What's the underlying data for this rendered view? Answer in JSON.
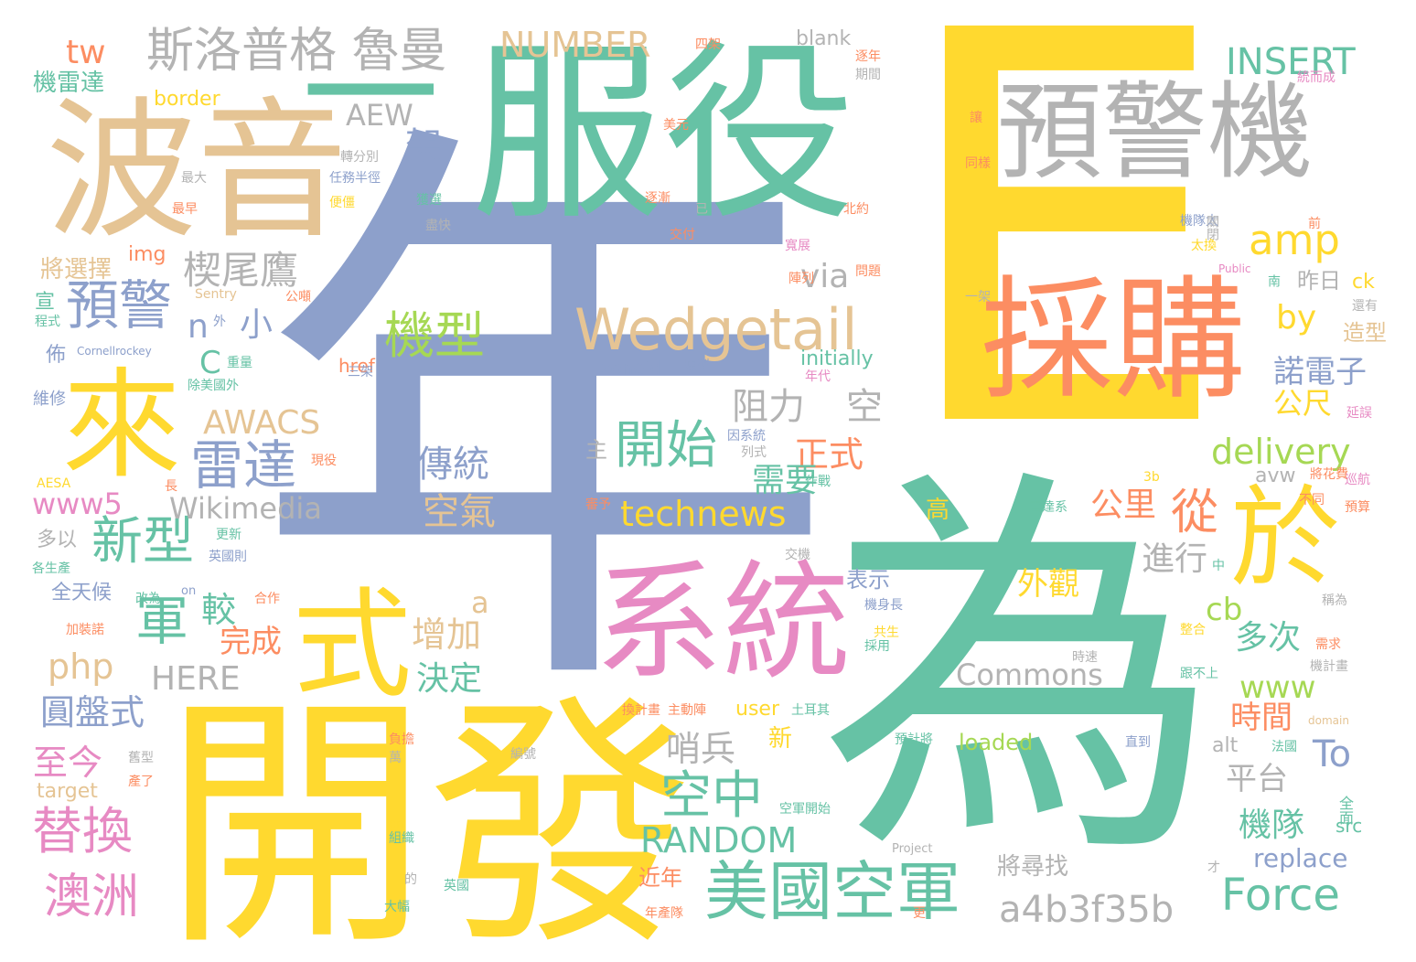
{
  "palette": {
    "teal": "#66c2a5",
    "orange": "#fc8d62",
    "blue": "#8da0cb",
    "pink": "#e78ac3",
    "green": "#a6d854",
    "yellow": "#ffd92f",
    "tan": "#e5c494",
    "gray": "#b3b3b3"
  },
  "words": [
    {
      "text": "E",
      "color": "yellow",
      "rotate": false,
      "emphasis": "largest"
    },
    {
      "text": "年",
      "color": "blue",
      "rotate": false,
      "emphasis": "largest"
    },
    {
      "text": "為",
      "color": "teal",
      "rotate": false,
      "emphasis": "largest"
    },
    {
      "text": "開發",
      "color": "yellow"
    },
    {
      "text": "服役",
      "color": "teal"
    },
    {
      "text": "波音",
      "color": "tan"
    },
    {
      "text": "採購",
      "color": "orange"
    },
    {
      "text": "預警機",
      "color": "gray"
    },
    {
      "text": "系統",
      "color": "pink"
    },
    {
      "text": "來",
      "color": "yellow"
    },
    {
      "text": "式",
      "color": "yellow"
    },
    {
      "text": "於",
      "color": "yellow"
    },
    {
      "text": "一",
      "color": "teal"
    },
    {
      "text": "美國空軍",
      "color": "teal"
    },
    {
      "text": "斯洛普格 魯曼",
      "color": "gray"
    },
    {
      "text": "Wedgetail",
      "color": "tan"
    },
    {
      "text": "預警",
      "color": "blue"
    },
    {
      "text": "雷達",
      "color": "blue"
    },
    {
      "text": "新型",
      "color": "teal"
    },
    {
      "text": "替換",
      "color": "pink"
    },
    {
      "text": "澳洲",
      "color": "pink"
    },
    {
      "text": "機型",
      "color": "green"
    },
    {
      "text": "開始",
      "color": "teal"
    },
    {
      "text": "空中",
      "color": "teal"
    },
    {
      "text": "Force",
      "color": "teal"
    },
    {
      "text": "a4b3f35b",
      "color": "gray"
    },
    {
      "text": "amp",
      "color": "yellow"
    },
    {
      "text": "INSERT",
      "color": "teal"
    },
    {
      "text": "NUMBER",
      "color": "tan"
    },
    {
      "text": "technews",
      "color": "yellow"
    },
    {
      "text": "RANDOM",
      "color": "teal"
    },
    {
      "text": "Commons",
      "color": "gray"
    },
    {
      "text": "delivery",
      "color": "green"
    },
    {
      "text": "Wikimedia",
      "color": "gray"
    },
    {
      "text": "AWACS",
      "color": "tan"
    },
    {
      "text": "www5",
      "color": "pink"
    },
    {
      "text": "www",
      "color": "green"
    },
    {
      "text": "php",
      "color": "tan"
    },
    {
      "text": "HERE",
      "color": "gray"
    },
    {
      "text": "To",
      "color": "blue"
    },
    {
      "text": "軍",
      "color": "teal"
    },
    {
      "text": "架",
      "color": "blue"
    },
    {
      "text": "從",
      "color": "orange"
    },
    {
      "text": "楔尾鷹",
      "color": "gray"
    },
    {
      "text": "傳統",
      "color": "blue"
    },
    {
      "text": "空氣",
      "color": "tan"
    },
    {
      "text": "阻力",
      "color": "gray"
    },
    {
      "text": "空",
      "color": "gray"
    },
    {
      "text": "正式",
      "color": "orange"
    },
    {
      "text": "需要",
      "color": "teal"
    },
    {
      "text": "增加",
      "color": "tan"
    },
    {
      "text": "決定",
      "color": "teal"
    },
    {
      "text": "外觀",
      "color": "yellow"
    },
    {
      "text": "圓盤式",
      "color": "blue"
    },
    {
      "text": "至今",
      "color": "pink"
    },
    {
      "text": "完成",
      "color": "orange"
    },
    {
      "text": "較",
      "color": "teal"
    },
    {
      "text": "哨兵",
      "color": "gray"
    },
    {
      "text": "機隊",
      "color": "teal"
    },
    {
      "text": "多次",
      "color": "teal"
    },
    {
      "text": "時間",
      "color": "orange"
    },
    {
      "text": "平台",
      "color": "gray"
    },
    {
      "text": "進行",
      "color": "gray"
    },
    {
      "text": "公里",
      "color": "orange"
    },
    {
      "text": "諾電子",
      "color": "blue"
    },
    {
      "text": "公尺",
      "color": "yellow"
    },
    {
      "text": "cb",
      "color": "green"
    },
    {
      "text": "by",
      "color": "yellow"
    },
    {
      "text": "via",
      "color": "gray"
    },
    {
      "text": "AEW",
      "color": "gray"
    },
    {
      "text": "tw",
      "color": "orange"
    },
    {
      "text": "n",
      "color": "blue"
    },
    {
      "text": "小",
      "color": "blue"
    },
    {
      "text": "a",
      "color": "tan"
    },
    {
      "text": "C",
      "color": "teal"
    },
    {
      "text": "replace",
      "color": "blue"
    },
    {
      "text": "loaded",
      "color": "green"
    },
    {
      "text": "zoneid",
      "color": "blue"
    },
    {
      "text": "initially",
      "color": "teal"
    },
    {
      "text": "blank",
      "color": "gray"
    },
    {
      "text": "border",
      "color": "yellow"
    },
    {
      "text": "img",
      "color": "orange"
    },
    {
      "text": "href",
      "color": "orange"
    },
    {
      "text": "user",
      "color": "yellow"
    },
    {
      "text": "alt",
      "color": "gray"
    },
    {
      "text": "avw",
      "color": "gray"
    },
    {
      "text": "ck",
      "color": "yellow"
    },
    {
      "text": "src",
      "color": "teal"
    },
    {
      "text": "target",
      "color": "tan"
    },
    {
      "text": "將尋找",
      "color": "gray"
    },
    {
      "text": "近年",
      "color": "orange"
    },
    {
      "text": "表示",
      "color": "blue"
    },
    {
      "text": "新",
      "color": "yellow"
    },
    {
      "text": "主",
      "color": "gray"
    },
    {
      "text": "高",
      "color": "yellow"
    },
    {
      "text": "昨日",
      "color": "gray"
    },
    {
      "text": "造型",
      "color": "tan"
    },
    {
      "text": "將選擇",
      "color": "tan"
    },
    {
      "text": "機雷達",
      "color": "teal"
    },
    {
      "text": "宣",
      "color": "teal"
    },
    {
      "text": "佈",
      "color": "blue"
    },
    {
      "text": "多以",
      "color": "gray"
    },
    {
      "text": "全天候",
      "color": "blue"
    },
    {
      "text": "維修",
      "color": "blue"
    },
    {
      "text": "逐年",
      "color": "orange"
    },
    {
      "text": "期間",
      "color": "gray"
    },
    {
      "text": "美元",
      "color": "orange"
    },
    {
      "text": "已",
      "color": "gray"
    },
    {
      "text": "北約",
      "color": "orange"
    },
    {
      "text": "交付",
      "color": "orange"
    },
    {
      "text": "逐漸",
      "color": "orange"
    },
    {
      "text": "盡快",
      "color": "gray"
    },
    {
      "text": "任務半徑",
      "color": "blue"
    },
    {
      "text": "便僵",
      "color": "yellow"
    },
    {
      "text": "最大",
      "color": "gray"
    },
    {
      "text": "最早",
      "color": "orange"
    },
    {
      "text": "一架",
      "color": "gray"
    },
    {
      "text": "還有",
      "color": "gray"
    },
    {
      "text": "問題",
      "color": "orange"
    },
    {
      "text": "寬展",
      "color": "pink"
    },
    {
      "text": "機隊太",
      "color": "blue"
    },
    {
      "text": "同樣",
      "color": "orange"
    },
    {
      "text": "關閉",
      "color": "gray"
    },
    {
      "text": "太換",
      "color": "yellow"
    },
    {
      "text": "Public",
      "color": "pink"
    },
    {
      "text": "Sentry",
      "color": "tan"
    },
    {
      "text": "Cornellrockey",
      "color": "blue"
    },
    {
      "text": "Project",
      "color": "gray"
    },
    {
      "text": "domain",
      "color": "tan"
    },
    {
      "text": "on",
      "color": "blue"
    },
    {
      "text": "en",
      "color": "yellow"
    },
    {
      "text": "AESA",
      "color": "yellow"
    },
    {
      "text": "3b",
      "color": "yellow"
    },
    {
      "text": "長",
      "color": "orange"
    },
    {
      "text": "中",
      "color": "teal"
    },
    {
      "text": "南",
      "color": "teal"
    },
    {
      "text": "更",
      "color": "orange"
    },
    {
      "text": "才",
      "color": "gray"
    },
    {
      "text": "的",
      "color": "gray"
    },
    {
      "text": "英國",
      "color": "teal"
    },
    {
      "text": "大幅",
      "color": "teal"
    },
    {
      "text": "組織",
      "color": "teal"
    },
    {
      "text": "年產隊",
      "color": "orange"
    },
    {
      "text": "直到",
      "color": "blue"
    },
    {
      "text": "法國",
      "color": "teal"
    },
    {
      "text": "全面",
      "color": "teal"
    },
    {
      "text": "三架",
      "color": "blue"
    },
    {
      "text": "原型",
      "color": "blue"
    },
    {
      "text": "年代",
      "color": "pink"
    },
    {
      "text": "重量",
      "color": "teal"
    },
    {
      "text": "除美國外",
      "color": "teal"
    },
    {
      "text": "現役",
      "color": "orange"
    },
    {
      "text": "更新",
      "color": "teal"
    },
    {
      "text": "英國則",
      "color": "blue"
    },
    {
      "text": "各生產",
      "color": "teal"
    },
    {
      "text": "改為",
      "color": "teal"
    },
    {
      "text": "合作",
      "color": "orange"
    },
    {
      "text": "加裝諾",
      "color": "orange"
    },
    {
      "text": "舊型",
      "color": "gray"
    },
    {
      "text": "產了",
      "color": "orange"
    },
    {
      "text": "萬",
      "color": "gray"
    },
    {
      "text": "編號",
      "color": "gray"
    },
    {
      "text": "負擔",
      "color": "orange"
    },
    {
      "text": "預計將",
      "color": "teal"
    },
    {
      "text": "土耳其",
      "color": "teal"
    },
    {
      "text": "主動陣",
      "color": "orange"
    },
    {
      "text": "換計畫",
      "color": "orange"
    },
    {
      "text": "交機",
      "color": "gray"
    },
    {
      "text": "機身長",
      "color": "blue"
    },
    {
      "text": "共生",
      "color": "yellow"
    },
    {
      "text": "採用",
      "color": "teal"
    },
    {
      "text": "空軍開始",
      "color": "teal"
    },
    {
      "text": "雷達系",
      "color": "teal"
    },
    {
      "text": "不同",
      "color": "orange"
    },
    {
      "text": "預算",
      "color": "orange"
    },
    {
      "text": "巡航",
      "color": "pink"
    },
    {
      "text": "將花費",
      "color": "orange"
    },
    {
      "text": "延誤",
      "color": "pink"
    },
    {
      "text": "稱為",
      "color": "gray"
    },
    {
      "text": "整合",
      "color": "yellow"
    },
    {
      "text": "需求",
      "color": "orange"
    },
    {
      "text": "機計畫",
      "color": "gray"
    },
    {
      "text": "時速",
      "color": "gray"
    },
    {
      "text": "跟不上",
      "color": "teal"
    },
    {
      "text": "四架",
      "color": "orange"
    },
    {
      "text": "統而成",
      "color": "pink"
    },
    {
      "text": "讓",
      "color": "orange"
    },
    {
      "text": "轉分別",
      "color": "gray"
    },
    {
      "text": "獲選",
      "color": "teal"
    },
    {
      "text": "公噸",
      "color": "orange"
    },
    {
      "text": "陣列",
      "color": "orange"
    },
    {
      "text": "程式",
      "color": "teal"
    },
    {
      "text": "因系統",
      "color": "blue"
    },
    {
      "text": "列式",
      "color": "gray"
    },
    {
      "text": "作戰",
      "color": "teal"
    },
    {
      "text": "審予",
      "color": "orange"
    },
    {
      "text": "前",
      "color": "orange"
    },
    {
      "text": "外",
      "color": "blue"
    }
  ]
}
